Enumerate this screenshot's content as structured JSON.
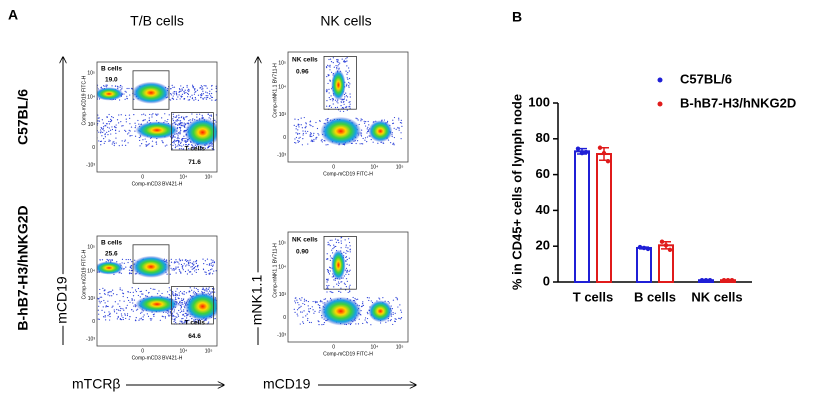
{
  "panel_a": {
    "label": "A",
    "column_titles": [
      "T/B cells",
      "NK cells"
    ],
    "row_titles": [
      "C57BL/6",
      "B-hB7-H3/hNKG2D"
    ],
    "y_arrow_labels": [
      "mCD19",
      "mNK1.1"
    ],
    "x_arrow_labels": [
      "mTCRβ",
      "mCD19"
    ],
    "flow_ticks": {
      "y": [
        "10⁵",
        "10⁴",
        "10³",
        "0",
        "-10³"
      ],
      "x": [
        "0",
        "10⁴",
        "10⁵"
      ]
    },
    "plots": [
      {
        "x_label": "Comp-mCD3 BV421-H",
        "y_label": "Comp-mCD19 FITC-H",
        "gates": [
          {
            "label": "B cells",
            "value": "19.0"
          },
          {
            "label": "T cells",
            "value": "71.6"
          }
        ]
      },
      {
        "x_label": "Comp-mCD19 FITC-H",
        "y_label": "Comp-mNK1.1 BV711-H",
        "gates": [
          {
            "label": "NK cells",
            "value": "0.96"
          }
        ]
      },
      {
        "x_label": "Comp-mCD3 BV421-H",
        "y_label": "Comp-mCD19 FITC-H",
        "gates": [
          {
            "label": "B cells",
            "value": "25.6"
          },
          {
            "label": "T cells",
            "value": "64.6"
          }
        ]
      },
      {
        "x_label": "Comp-mCD19 FITC-H",
        "y_label": "Comp-mNK1.1 BV711-H",
        "gates": [
          {
            "label": "NK cells",
            "value": "0.90"
          }
        ]
      }
    ]
  },
  "chart_data": {
    "type": "bar",
    "label": "B",
    "y_label": "% in CD45+ cells of lymph node",
    "categories": [
      "T cells",
      "B cells",
      "NK cells"
    ],
    "ylim": [
      0,
      100
    ],
    "yticks": [
      0,
      20,
      40,
      60,
      80,
      100
    ],
    "series": [
      {
        "name": "C57BL/6",
        "color": "#1f1fd6",
        "values": [
          73,
          19,
          1
        ],
        "errors": [
          1.5,
          0.5,
          0.2
        ],
        "points": [
          [
            74.5,
            72,
            72.5
          ],
          [
            19.5,
            19,
            18.5
          ],
          [
            1,
            1,
            1
          ]
        ]
      },
      {
        "name": "B-hB7-H3/hNKG2D",
        "color": "#e01b1b",
        "values": [
          71.5,
          20.5,
          1
        ],
        "errors": [
          3.5,
          2,
          0.2
        ],
        "points": [
          [
            75,
            72,
            67.5
          ],
          [
            22.5,
            20.5,
            18
          ],
          [
            1,
            1,
            1
          ]
        ]
      }
    ]
  }
}
